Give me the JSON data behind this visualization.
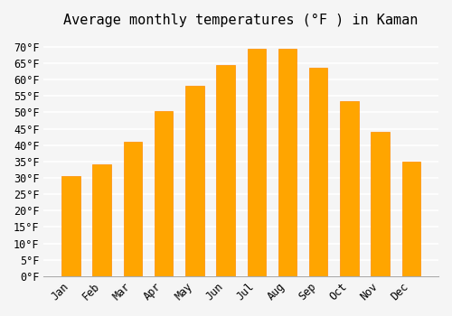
{
  "title": "Average monthly temperatures (°F ) in Kaman",
  "months": [
    "Jan",
    "Feb",
    "Mar",
    "Apr",
    "May",
    "Jun",
    "Jul",
    "Aug",
    "Sep",
    "Oct",
    "Nov",
    "Dec"
  ],
  "values": [
    30.5,
    34.0,
    41.0,
    50.5,
    58.0,
    64.5,
    69.5,
    69.5,
    63.5,
    53.5,
    44.0,
    35.0
  ],
  "bar_color": "#FFA500",
  "bar_edge_color": "#FF8C00",
  "background_color": "#f5f5f5",
  "grid_color": "#ffffff",
  "ylim": [
    0,
    73
  ],
  "yticks": [
    0,
    5,
    10,
    15,
    20,
    25,
    30,
    35,
    40,
    45,
    50,
    55,
    60,
    65,
    70
  ],
  "title_fontsize": 11,
  "tick_fontsize": 8.5,
  "font_family": "monospace"
}
